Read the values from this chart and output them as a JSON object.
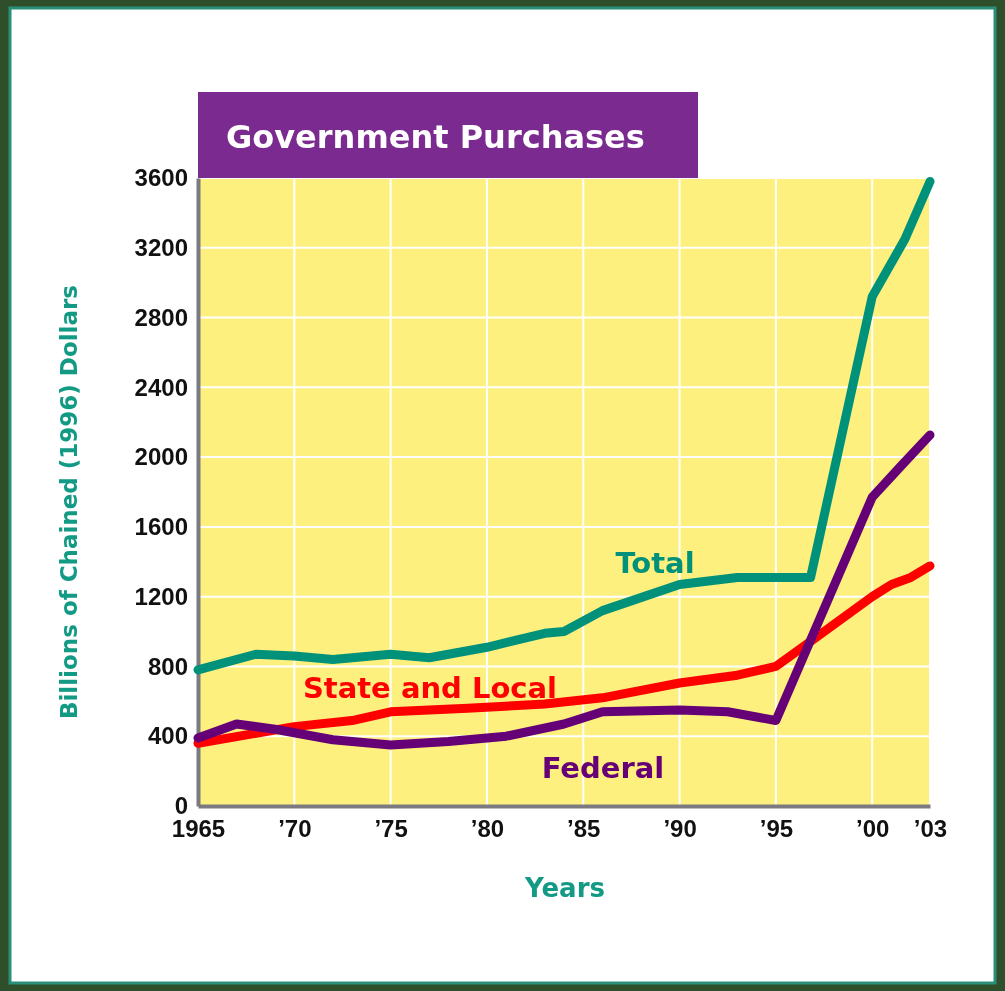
{
  "chart_data": {
    "type": "line",
    "title": "Government Purchases",
    "xlabel": "Years",
    "ylabel": "Billions of Chained (1996) Dollars",
    "xlim": [
      1965,
      2003
    ],
    "xticks": [
      1965,
      {
        "value": 1970,
        "label": "’70"
      },
      {
        "value": 1975,
        "label": "’75"
      },
      {
        "value": 1980,
        "label": "’80"
      },
      {
        "value": 1985,
        "label": "’85"
      },
      {
        "value": 1990,
        "label": "’90"
      },
      {
        "value": 1995,
        "label": "’95"
      },
      {
        "value": 2000,
        "label": "’00"
      },
      {
        "value": 2003,
        "label": "’03"
      }
    ],
    "ylim": [
      0,
      3600
    ],
    "yticks": [
      0,
      400,
      800,
      1200,
      1600,
      2000,
      2400,
      2800,
      3200,
      3600
    ],
    "grid": true,
    "legend": false,
    "marker": "none",
    "line_style": "solid",
    "series": [
      {
        "name": "Total",
        "color": "#00917a",
        "x": [
          1965,
          1968,
          1970,
          1972,
          1975,
          1977,
          1980,
          1983,
          1984,
          1986,
          1990,
          1993,
          1995,
          1996.8,
          2000,
          2001.7,
          2003
        ],
        "values": [
          780,
          870,
          860,
          840,
          870,
          850,
          910,
          990,
          1000,
          1120,
          1270,
          1310,
          1310,
          1310,
          2920,
          3250,
          3580
        ]
      },
      {
        "name": "State and Local",
        "color": "#ff0000",
        "x": [
          1965,
          1970,
          1973,
          1975,
          1979,
          1983,
          1986,
          1990,
          1993,
          1995,
          1997,
          2000,
          2001,
          2002,
          2003
        ],
        "values": [
          360,
          455,
          490,
          540,
          560,
          585,
          620,
          705,
          750,
          800,
          960,
          1200,
          1270,
          1310,
          1376
        ]
      },
      {
        "name": "Federal",
        "color": "#660077",
        "x": [
          1965,
          1967,
          1969,
          1972,
          1975,
          1978,
          1981,
          1984,
          1986,
          1990,
          1992.5,
          1995,
          2000,
          2001.5,
          2003
        ],
        "values": [
          390,
          470,
          440,
          380,
          350,
          370,
          400,
          470,
          540,
          550,
          540,
          490,
          1770,
          1950,
          2127
        ]
      }
    ]
  }
}
